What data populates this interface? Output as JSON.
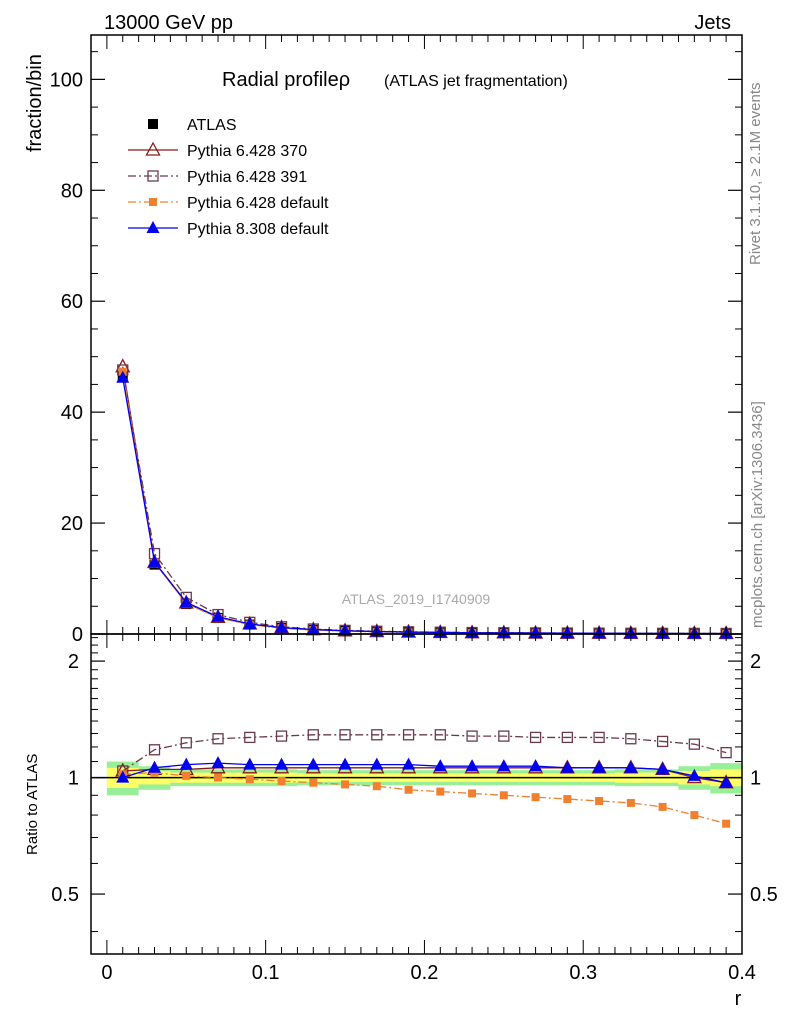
{
  "header": {
    "left": "13000 GeV pp",
    "right": "Jets"
  },
  "side_text": {
    "top": "Rivet 3.1.10, ≥ 2.1M events",
    "bottom": "mcplots.cern.ch [arXiv:1306.3436]"
  },
  "watermark": "ATLAS_2019_I1740909",
  "chart_data": [
    {
      "type": "line",
      "title": "Radial profileρ",
      "subtitle": "(ATLAS jet fragmentation)",
      "ylabel": "fraction/bin",
      "xlabel": "r",
      "xlim": [
        -0.01,
        0.4
      ],
      "ylim": [
        0,
        108
      ],
      "xticks": [
        0,
        0.1,
        0.2,
        0.3,
        0.4
      ],
      "xtick_labels": [
        "0",
        "0.1",
        "0.2",
        "0.3",
        "0.4"
      ],
      "yticks": [
        0,
        20,
        40,
        60,
        80,
        100
      ],
      "ytick_labels": [
        "0",
        "20",
        "40",
        "60",
        "80",
        "100"
      ],
      "legend_position": "top-left",
      "x": [
        0.01,
        0.03,
        0.05,
        0.07,
        0.09,
        0.11,
        0.13,
        0.15,
        0.17,
        0.19,
        0.21,
        0.23,
        0.25,
        0.27,
        0.29,
        0.31,
        0.33,
        0.35,
        0.37,
        0.39
      ],
      "series": [
        {
          "name": "ATLAS",
          "color": "#000000",
          "marker": "square-filled",
          "line": "none",
          "values": [
            46.5,
            12.5,
            5.4,
            2.9,
            1.7,
            1.1,
            0.75,
            0.55,
            0.42,
            0.33,
            0.27,
            0.22,
            0.19,
            0.16,
            0.14,
            0.12,
            0.11,
            0.1,
            0.09,
            0.08
          ]
        },
        {
          "name": "Pythia 6.428 370",
          "color": "#8b1a1a",
          "marker": "triangle-open",
          "line": "solid",
          "values": [
            48.2,
            12.9,
            5.6,
            3.0,
            1.8,
            1.15,
            0.78,
            0.57,
            0.44,
            0.34,
            0.28,
            0.23,
            0.2,
            0.17,
            0.15,
            0.13,
            0.12,
            0.11,
            0.1,
            0.09
          ]
        },
        {
          "name": "Pythia 6.428 391",
          "color": "#6b3a4a",
          "marker": "square-open",
          "line": "dashdot",
          "values": [
            47.6,
            14.5,
            6.6,
            3.5,
            2.1,
            1.3,
            0.9,
            0.65,
            0.5,
            0.39,
            0.32,
            0.26,
            0.22,
            0.19,
            0.17,
            0.15,
            0.13,
            0.12,
            0.11,
            0.1
          ]
        },
        {
          "name": "Pythia 6.428 default",
          "color": "#f08030",
          "marker": "square-filled-small",
          "line": "dashdot",
          "values": [
            47.3,
            12.9,
            5.5,
            2.9,
            1.7,
            1.05,
            0.7,
            0.52,
            0.39,
            0.3,
            0.24,
            0.2,
            0.17,
            0.14,
            0.12,
            0.1,
            0.09,
            0.08,
            0.07,
            0.06
          ]
        },
        {
          "name": "Pythia 8.308 default",
          "color": "#0000ee",
          "marker": "triangle-filled",
          "line": "solid",
          "values": [
            46.2,
            13.0,
            5.7,
            3.1,
            1.8,
            1.15,
            0.8,
            0.58,
            0.44,
            0.35,
            0.28,
            0.23,
            0.2,
            0.17,
            0.15,
            0.13,
            0.12,
            0.1,
            0.09,
            0.08
          ]
        }
      ]
    },
    {
      "type": "line",
      "ylabel": "Ratio to ATLAS",
      "xlabel": "r",
      "xlim": [
        -0.01,
        0.4
      ],
      "ylim": [
        0.35,
        2.35
      ],
      "yticks": [
        0.5,
        1,
        2
      ],
      "ytick_labels": [
        "0.5",
        "1",
        "2"
      ],
      "reference_line": 1.0,
      "x": [
        0.01,
        0.03,
        0.05,
        0.07,
        0.09,
        0.11,
        0.13,
        0.15,
        0.17,
        0.19,
        0.21,
        0.23,
        0.25,
        0.27,
        0.29,
        0.31,
        0.33,
        0.35,
        0.37,
        0.39
      ],
      "uncertainty_bands": {
        "inner_color": "#ffff66",
        "outer_color": "#99ee99",
        "inner": [
          0.06,
          0.04,
          0.03,
          0.03,
          0.03,
          0.03,
          0.025,
          0.025,
          0.025,
          0.025,
          0.025,
          0.025,
          0.025,
          0.025,
          0.025,
          0.025,
          0.03,
          0.03,
          0.04,
          0.05
        ],
        "outer": [
          0.1,
          0.07,
          0.05,
          0.05,
          0.05,
          0.05,
          0.045,
          0.045,
          0.045,
          0.045,
          0.045,
          0.045,
          0.045,
          0.045,
          0.045,
          0.045,
          0.05,
          0.05,
          0.07,
          0.09
        ]
      },
      "series": [
        {
          "name": "Pythia 6.428 370",
          "color": "#8b1a1a",
          "marker": "triangle-open",
          "line": "solid",
          "values": [
            1.04,
            1.05,
            1.05,
            1.06,
            1.06,
            1.06,
            1.06,
            1.06,
            1.06,
            1.06,
            1.06,
            1.06,
            1.06,
            1.06,
            1.06,
            1.06,
            1.06,
            1.05,
            1.0,
            0.97
          ]
        },
        {
          "name": "Pythia 6.428 391",
          "color": "#6b3a4a",
          "marker": "square-open",
          "line": "dashdot",
          "values": [
            1.04,
            1.18,
            1.23,
            1.26,
            1.27,
            1.28,
            1.29,
            1.29,
            1.29,
            1.29,
            1.29,
            1.28,
            1.28,
            1.27,
            1.27,
            1.27,
            1.26,
            1.24,
            1.22,
            1.16
          ]
        },
        {
          "name": "Pythia 6.428 default",
          "color": "#f08030",
          "marker": "square-filled-small",
          "line": "dashdot",
          "values": [
            1.02,
            1.03,
            1.01,
            1.0,
            0.99,
            0.98,
            0.97,
            0.96,
            0.95,
            0.93,
            0.92,
            0.91,
            0.9,
            0.89,
            0.88,
            0.87,
            0.86,
            0.84,
            0.8,
            0.76
          ]
        },
        {
          "name": "Pythia 8.308 default",
          "color": "#0000ee",
          "marker": "triangle-filled",
          "line": "solid",
          "values": [
            1.0,
            1.06,
            1.08,
            1.09,
            1.08,
            1.08,
            1.08,
            1.08,
            1.08,
            1.08,
            1.07,
            1.07,
            1.07,
            1.07,
            1.06,
            1.06,
            1.06,
            1.05,
            1.01,
            0.97
          ]
        }
      ]
    }
  ]
}
